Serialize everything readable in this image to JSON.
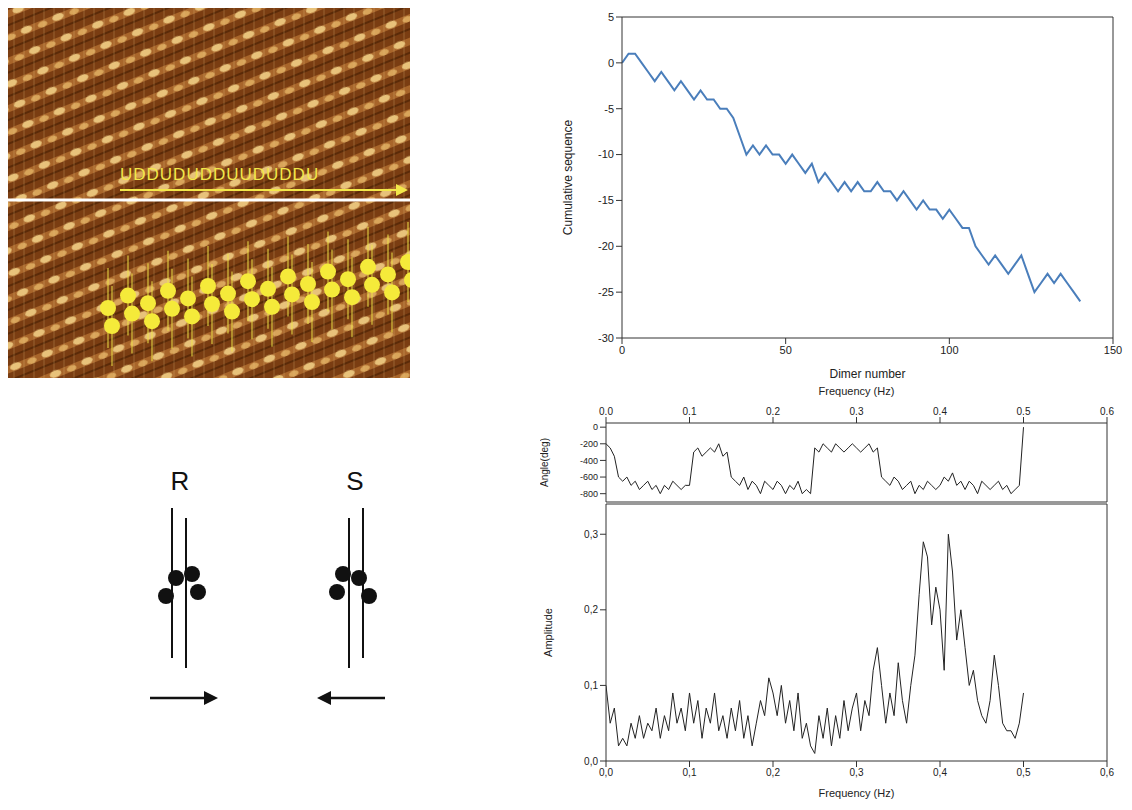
{
  "image": {
    "sequence_label": "UDDUDUDDUUDUDDU"
  },
  "diagram": {
    "labels": [
      "R",
      "S"
    ]
  },
  "chart_data": [
    {
      "type": "line",
      "x_label": "Dimer number",
      "y_label": "Cumulative sequence",
      "color": "#4a7ebb",
      "xlim": [
        0,
        150
      ],
      "xticks": [
        0,
        50,
        100,
        150
      ],
      "ylim": [
        -30,
        5
      ],
      "yticks": [
        -30,
        -25,
        -20,
        -15,
        -10,
        -5,
        0,
        5
      ],
      "x": [
        0,
        2,
        4,
        6,
        8,
        10,
        12,
        14,
        16,
        18,
        20,
        22,
        24,
        26,
        28,
        30,
        32,
        34,
        36,
        38,
        40,
        42,
        44,
        46,
        48,
        50,
        52,
        54,
        56,
        58,
        60,
        62,
        64,
        66,
        68,
        70,
        72,
        74,
        76,
        78,
        80,
        82,
        84,
        86,
        88,
        90,
        92,
        94,
        96,
        98,
        100,
        102,
        104,
        106,
        108,
        110,
        112,
        114,
        116,
        118,
        120,
        122,
        124,
        126,
        128,
        130,
        132,
        134,
        136,
        138,
        140
      ],
      "values": [
        0,
        1,
        1,
        0,
        -1,
        -2,
        -1,
        -2,
        -3,
        -2,
        -3,
        -4,
        -3,
        -4,
        -4,
        -5,
        -5,
        -6,
        -8,
        -10,
        -9,
        -10,
        -9,
        -10,
        -10,
        -11,
        -10,
        -11,
        -12,
        -11,
        -13,
        -12,
        -13,
        -14,
        -13,
        -14,
        -13,
        -14,
        -14,
        -13,
        -14,
        -14,
        -15,
        -14,
        -15,
        -16,
        -15,
        -16,
        -16,
        -17,
        -16,
        -17,
        -18,
        -18,
        -20,
        -21,
        -22,
        -21,
        -22,
        -23,
        -22,
        -21,
        -23,
        -25,
        -24,
        -23,
        -24,
        -23,
        -24,
        -25,
        -26
      ]
    },
    {
      "type": "line",
      "x_label": "Frequency (Hz)",
      "y_label": "Angle(deg)",
      "color": "#222222",
      "xlim": [
        0,
        0.6
      ],
      "xticks": [
        {
          "value": 0,
          "label": "0.0"
        },
        {
          "value": 0.1,
          "label": "0.1"
        },
        {
          "value": 0.2,
          "label": "0.2"
        },
        {
          "value": 0.3,
          "label": "0.3"
        },
        {
          "value": 0.4,
          "label": "0.4"
        },
        {
          "value": 0.5,
          "label": "0.5"
        },
        {
          "value": 0.6,
          "label": "0.6"
        }
      ],
      "ylim": [
        -900,
        50
      ],
      "yticks": [
        -800,
        -600,
        -400,
        -200,
        0
      ],
      "x": [
        0,
        0.005,
        0.01,
        0.015,
        0.02,
        0.025,
        0.03,
        0.035,
        0.04,
        0.045,
        0.05,
        0.055,
        0.06,
        0.065,
        0.07,
        0.075,
        0.08,
        0.085,
        0.09,
        0.095,
        0.1,
        0.105,
        0.11,
        0.115,
        0.12,
        0.125,
        0.13,
        0.135,
        0.14,
        0.145,
        0.15,
        0.155,
        0.16,
        0.165,
        0.17,
        0.175,
        0.18,
        0.185,
        0.19,
        0.195,
        0.2,
        0.205,
        0.21,
        0.215,
        0.22,
        0.225,
        0.23,
        0.235,
        0.24,
        0.245,
        0.25,
        0.255,
        0.26,
        0.265,
        0.27,
        0.275,
        0.28,
        0.285,
        0.29,
        0.295,
        0.3,
        0.305,
        0.31,
        0.315,
        0.32,
        0.325,
        0.33,
        0.335,
        0.34,
        0.345,
        0.35,
        0.355,
        0.36,
        0.365,
        0.37,
        0.375,
        0.38,
        0.385,
        0.39,
        0.395,
        0.4,
        0.405,
        0.41,
        0.415,
        0.42,
        0.425,
        0.43,
        0.435,
        0.44,
        0.445,
        0.45,
        0.455,
        0.46,
        0.465,
        0.47,
        0.475,
        0.48,
        0.485,
        0.49,
        0.495,
        0.5
      ],
      "values": [
        -200,
        -250,
        -350,
        -600,
        -650,
        -600,
        -700,
        -650,
        -750,
        -700,
        -650,
        -750,
        -700,
        -800,
        -700,
        -750,
        -650,
        -700,
        -750,
        -700,
        -700,
        -300,
        -250,
        -350,
        -300,
        -250,
        -300,
        -200,
        -350,
        -300,
        -600,
        -650,
        -700,
        -600,
        -750,
        -650,
        -700,
        -800,
        -650,
        -700,
        -750,
        -650,
        -700,
        -800,
        -700,
        -750,
        -650,
        -800,
        -750,
        -800,
        -250,
        -300,
        -200,
        -250,
        -300,
        -200,
        -250,
        -300,
        -250,
        -200,
        -250,
        -300,
        -250,
        -200,
        -300,
        -250,
        -600,
        -650,
        -700,
        -600,
        -650,
        -750,
        -700,
        -650,
        -800,
        -700,
        -750,
        -650,
        -700,
        -750,
        -700,
        -600,
        -650,
        -550,
        -700,
        -650,
        -750,
        -650,
        -700,
        -800,
        -650,
        -700,
        -750,
        -700,
        -650,
        -750,
        -700,
        -800,
        -750,
        -700,
        0
      ]
    },
    {
      "type": "line",
      "x_label": "Frequency (Hz)",
      "y_label": "Amplitude",
      "color": "#222222",
      "xlim": [
        0,
        0.6
      ],
      "xticks": [
        {
          "value": 0,
          "label": "0,0"
        },
        {
          "value": 0.1,
          "label": "0,1"
        },
        {
          "value": 0.2,
          "label": "0,2"
        },
        {
          "value": 0.3,
          "label": "0,3"
        },
        {
          "value": 0.4,
          "label": "0,4"
        },
        {
          "value": 0.5,
          "label": "0,5"
        },
        {
          "value": 0.6,
          "label": "0,6"
        }
      ],
      "ylim": [
        0,
        0.34
      ],
      "yticks": [
        {
          "value": 0,
          "label": "0,0"
        },
        {
          "value": 0.1,
          "label": "0,1"
        },
        {
          "value": 0.2,
          "label": "0,2"
        },
        {
          "value": 0.3,
          "label": "0,3"
        }
      ],
      "x": [
        0,
        0.005,
        0.01,
        0.015,
        0.02,
        0.025,
        0.03,
        0.035,
        0.04,
        0.045,
        0.05,
        0.055,
        0.06,
        0.065,
        0.07,
        0.075,
        0.08,
        0.085,
        0.09,
        0.095,
        0.1,
        0.105,
        0.11,
        0.115,
        0.12,
        0.125,
        0.13,
        0.135,
        0.14,
        0.145,
        0.15,
        0.155,
        0.16,
        0.165,
        0.17,
        0.175,
        0.18,
        0.185,
        0.19,
        0.195,
        0.2,
        0.205,
        0.21,
        0.215,
        0.22,
        0.225,
        0.23,
        0.235,
        0.24,
        0.245,
        0.25,
        0.255,
        0.26,
        0.265,
        0.27,
        0.275,
        0.28,
        0.285,
        0.29,
        0.295,
        0.3,
        0.305,
        0.31,
        0.315,
        0.32,
        0.325,
        0.33,
        0.335,
        0.34,
        0.345,
        0.35,
        0.355,
        0.36,
        0.365,
        0.37,
        0.375,
        0.38,
        0.385,
        0.39,
        0.395,
        0.4,
        0.405,
        0.41,
        0.415,
        0.42,
        0.425,
        0.43,
        0.435,
        0.44,
        0.445,
        0.45,
        0.455,
        0.46,
        0.465,
        0.47,
        0.475,
        0.48,
        0.485,
        0.49,
        0.495,
        0.5
      ],
      "values": [
        0.1,
        0.05,
        0.07,
        0.02,
        0.03,
        0.02,
        0.05,
        0.03,
        0.06,
        0.03,
        0.05,
        0.04,
        0.07,
        0.03,
        0.06,
        0.04,
        0.09,
        0.05,
        0.07,
        0.04,
        0.09,
        0.05,
        0.08,
        0.03,
        0.07,
        0.05,
        0.09,
        0.04,
        0.06,
        0.03,
        0.07,
        0.04,
        0.08,
        0.03,
        0.06,
        0.02,
        0.05,
        0.08,
        0.06,
        0.11,
        0.09,
        0.06,
        0.1,
        0.05,
        0.08,
        0.04,
        0.09,
        0.03,
        0.05,
        0.02,
        0.01,
        0.06,
        0.03,
        0.07,
        0.02,
        0.06,
        0.03,
        0.08,
        0.04,
        0.07,
        0.09,
        0.04,
        0.08,
        0.06,
        0.12,
        0.15,
        0.1,
        0.05,
        0.09,
        0.06,
        0.13,
        0.08,
        0.05,
        0.1,
        0.14,
        0.22,
        0.29,
        0.27,
        0.18,
        0.23,
        0.2,
        0.12,
        0.3,
        0.25,
        0.16,
        0.2,
        0.15,
        0.1,
        0.12,
        0.08,
        0.06,
        0.05,
        0.08,
        0.14,
        0.1,
        0.05,
        0.04,
        0.04,
        0.03,
        0.05,
        0.09
      ]
    }
  ]
}
